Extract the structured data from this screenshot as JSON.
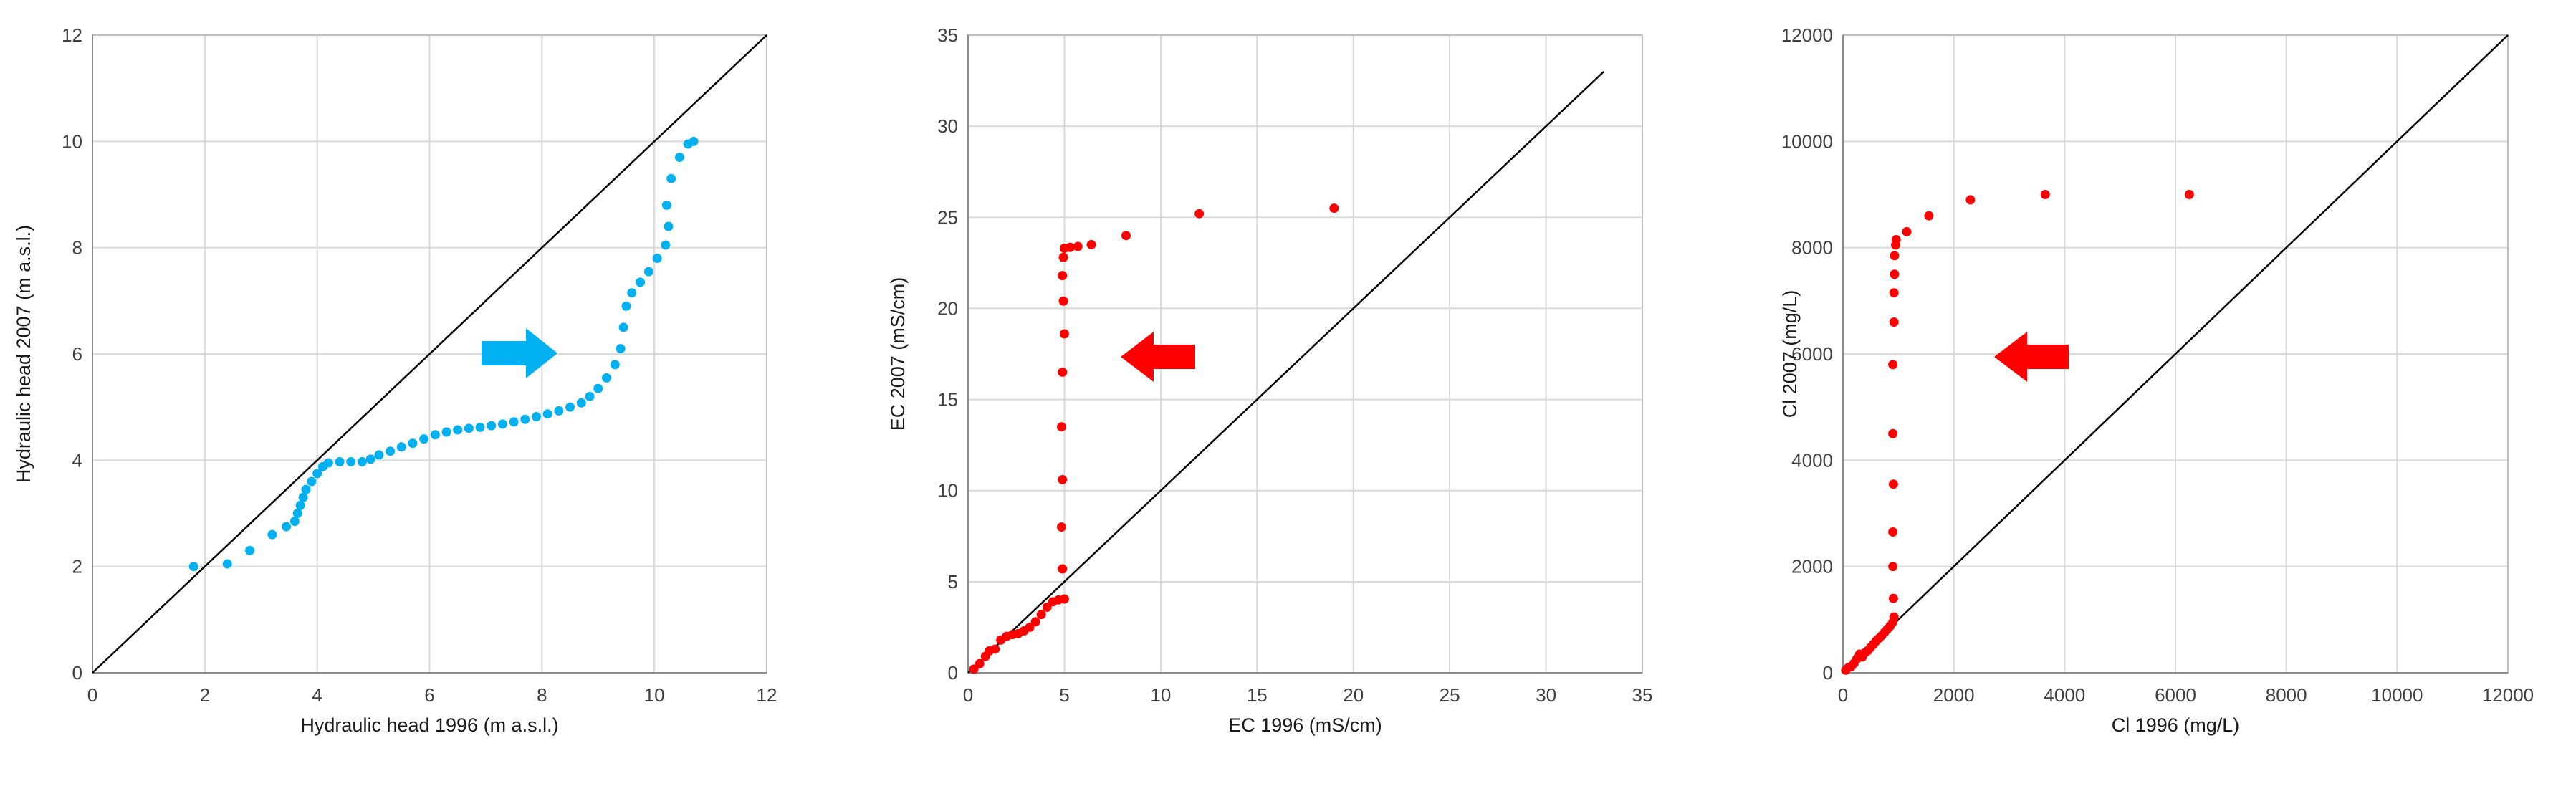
{
  "chart_data": [
    {
      "type": "scatter",
      "xlabel": "Hydraulic head 1996 (m a.s.l.)",
      "ylabel": "Hydraulic head 2007 (m a.s.l.)",
      "xlim": [
        0,
        12
      ],
      "ylim": [
        0,
        12
      ],
      "xticks": [
        "0",
        "2",
        "4",
        "6",
        "8",
        "10",
        "12"
      ],
      "yticks": [
        "0",
        "2",
        "4",
        "6",
        "8",
        "10",
        "12"
      ],
      "grid": true,
      "reference_line": [
        [
          0,
          0
        ],
        [
          12,
          12
        ]
      ],
      "arrow_direction": "right",
      "arrow_color": "#00b0f0",
      "marker_color": "#00b0f0",
      "series": [
        {
          "points": [
            [
              1.8,
              2.0
            ],
            [
              2.4,
              2.05
            ],
            [
              2.8,
              2.3
            ],
            [
              3.2,
              2.6
            ],
            [
              3.45,
              2.75
            ],
            [
              3.6,
              2.85
            ],
            [
              3.65,
              3.0
            ],
            [
              3.7,
              3.15
            ],
            [
              3.75,
              3.3
            ],
            [
              3.8,
              3.45
            ],
            [
              3.9,
              3.6
            ],
            [
              4.0,
              3.75
            ],
            [
              4.1,
              3.88
            ],
            [
              4.2,
              3.95
            ],
            [
              4.4,
              3.97
            ],
            [
              4.6,
              3.97
            ],
            [
              4.8,
              3.97
            ],
            [
              4.95,
              4.02
            ],
            [
              5.1,
              4.1
            ],
            [
              5.3,
              4.17
            ],
            [
              5.5,
              4.25
            ],
            [
              5.7,
              4.32
            ],
            [
              5.9,
              4.4
            ],
            [
              6.1,
              4.48
            ],
            [
              6.3,
              4.53
            ],
            [
              6.5,
              4.57
            ],
            [
              6.7,
              4.6
            ],
            [
              6.9,
              4.62
            ],
            [
              7.1,
              4.65
            ],
            [
              7.3,
              4.68
            ],
            [
              7.5,
              4.72
            ],
            [
              7.7,
              4.77
            ],
            [
              7.9,
              4.82
            ],
            [
              8.1,
              4.87
            ],
            [
              8.3,
              4.93
            ],
            [
              8.5,
              5.0
            ],
            [
              8.7,
              5.08
            ],
            [
              8.85,
              5.2
            ],
            [
              9.0,
              5.35
            ],
            [
              9.15,
              5.55
            ],
            [
              9.3,
              5.8
            ],
            [
              9.4,
              6.1
            ],
            [
              9.45,
              6.5
            ],
            [
              9.5,
              6.9
            ],
            [
              9.6,
              7.15
            ],
            [
              9.75,
              7.35
            ],
            [
              9.9,
              7.55
            ],
            [
              10.05,
              7.8
            ],
            [
              10.2,
              8.05
            ],
            [
              10.25,
              8.4
            ],
            [
              10.22,
              8.8
            ],
            [
              10.3,
              9.3
            ],
            [
              10.45,
              9.7
            ],
            [
              10.6,
              9.95
            ],
            [
              10.7,
              10.0
            ]
          ]
        }
      ]
    },
    {
      "type": "scatter",
      "xlabel": "EC 1996 (mS/cm)",
      "ylabel": "EC 2007 (mS/cm)",
      "xlim": [
        0,
        35
      ],
      "ylim": [
        0,
        35
      ],
      "xticks": [
        "0",
        "5",
        "10",
        "15",
        "20",
        "25",
        "30",
        "35"
      ],
      "yticks": [
        "0",
        "5",
        "10",
        "15",
        "20",
        "25",
        "30",
        "35"
      ],
      "grid": true,
      "reference_line": [
        [
          0,
          0
        ],
        [
          33,
          33
        ]
      ],
      "arrow_direction": "left",
      "arrow_color": "#ff0000",
      "marker_color": "#ff0000",
      "series": [
        {
          "points": [
            [
              0.3,
              0.2
            ],
            [
              0.6,
              0.5
            ],
            [
              0.9,
              0.9
            ],
            [
              1.1,
              1.2
            ],
            [
              1.4,
              1.3
            ],
            [
              1.7,
              1.8
            ],
            [
              2.0,
              2.0
            ],
            [
              2.3,
              2.1
            ],
            [
              2.6,
              2.15
            ],
            [
              2.9,
              2.3
            ],
            [
              3.2,
              2.5
            ],
            [
              3.5,
              2.8
            ],
            [
              3.8,
              3.2
            ],
            [
              4.1,
              3.6
            ],
            [
              4.4,
              3.9
            ],
            [
              4.7,
              4.0
            ],
            [
              5.0,
              4.05
            ],
            [
              4.9,
              5.7
            ],
            [
              4.85,
              8.0
            ],
            [
              4.9,
              10.6
            ],
            [
              4.85,
              13.5
            ],
            [
              4.9,
              16.5
            ],
            [
              5.0,
              18.6
            ],
            [
              4.95,
              20.4
            ],
            [
              4.9,
              21.8
            ],
            [
              4.95,
              22.8
            ],
            [
              5.0,
              23.3
            ],
            [
              5.3,
              23.35
            ],
            [
              5.7,
              23.4
            ],
            [
              6.4,
              23.5
            ],
            [
              8.2,
              24.0
            ],
            [
              12.0,
              25.2
            ],
            [
              19.0,
              25.5
            ]
          ]
        }
      ]
    },
    {
      "type": "scatter",
      "xlabel": "Cl 1996 (mg/L)",
      "ylabel": "Cl 2007 (mg/L)",
      "xlim": [
        0,
        12000
      ],
      "ylim": [
        0,
        12000
      ],
      "xticks": [
        "0",
        "2000",
        "4000",
        "6000",
        "8000",
        "10000",
        "12000"
      ],
      "yticks": [
        "0",
        "2000",
        "4000",
        "6000",
        "8000",
        "10000",
        "12000"
      ],
      "grid": true,
      "reference_line": [
        [
          0,
          0
        ],
        [
          12000,
          12000
        ]
      ],
      "arrow_direction": "left",
      "arrow_color": "#ff0000",
      "marker_color": "#ff0000",
      "series": [
        {
          "points": [
            [
              50,
              50
            ],
            [
              100,
              100
            ],
            [
              150,
              120
            ],
            [
              200,
              180
            ],
            [
              250,
              260
            ],
            [
              300,
              350
            ],
            [
              350,
              300
            ],
            [
              400,
              380
            ],
            [
              450,
              420
            ],
            [
              500,
              480
            ],
            [
              550,
              540
            ],
            [
              600,
              600
            ],
            [
              650,
              650
            ],
            [
              700,
              700
            ],
            [
              750,
              760
            ],
            [
              800,
              820
            ],
            [
              850,
              880
            ],
            [
              900,
              950
            ],
            [
              920,
              1050
            ],
            [
              910,
              1400
            ],
            [
              900,
              2000
            ],
            [
              900,
              2650
            ],
            [
              910,
              3550
            ],
            [
              900,
              4500
            ],
            [
              900,
              5800
            ],
            [
              920,
              6600
            ],
            [
              920,
              7150
            ],
            [
              930,
              7500
            ],
            [
              930,
              7850
            ],
            [
              950,
              8050
            ],
            [
              960,
              8150
            ],
            [
              1150,
              8300
            ],
            [
              1550,
              8600
            ],
            [
              2300,
              8900
            ],
            [
              3650,
              9000
            ],
            [
              6250,
              9000
            ]
          ]
        }
      ]
    }
  ]
}
